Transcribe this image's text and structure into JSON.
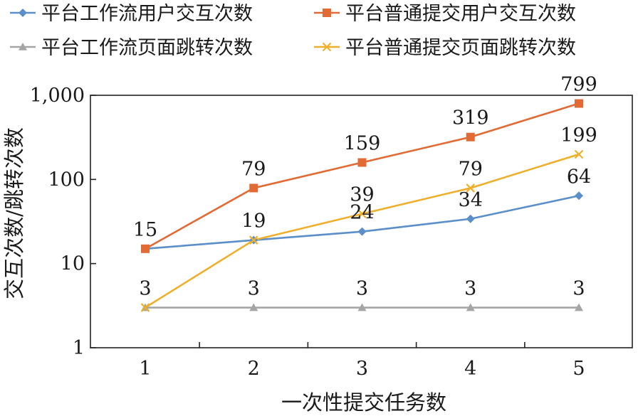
{
  "chart_data": {
    "type": "line",
    "x": [
      1,
      2,
      3,
      4,
      5
    ],
    "yscale": "log",
    "ylim": [
      1,
      1000
    ],
    "yticks": [
      1,
      10,
      100,
      1000
    ],
    "ytick_labels": [
      "1",
      "10",
      "100",
      "1,000"
    ],
    "xtick_labels": [
      "1",
      "2",
      "3",
      "4",
      "5"
    ],
    "xlabel": "一次性提交任务数",
    "ylabel": "交互次数/跳转次数",
    "legend_position": "top",
    "series": [
      {
        "name": "平台工作流用户交互次数",
        "values": [
          15,
          19,
          24,
          34,
          64
        ],
        "color": "#5b8fc9",
        "marker": "diamond",
        "labels": [
          "",
          "",
          "24",
          "34",
          "64"
        ]
      },
      {
        "name": "平台普通提交用户交互次数",
        "values": [
          15,
          79,
          159,
          319,
          799
        ],
        "color": "#e26a34",
        "marker": "square",
        "labels": [
          "15",
          "79",
          "159",
          "319",
          "799"
        ]
      },
      {
        "name": "平台工作流页面跳转次数",
        "values": [
          3,
          3,
          3,
          3,
          3
        ],
        "color": "#a5a5a5",
        "marker": "triangle",
        "labels": [
          "3",
          "3",
          "3",
          "3",
          "3"
        ]
      },
      {
        "name": "平台普通提交页面跳转次数",
        "values": [
          3,
          19,
          39,
          79,
          199
        ],
        "color": "#eeb02c",
        "marker": "x",
        "labels": [
          "",
          "19",
          "39",
          "79",
          "199"
        ]
      }
    ]
  }
}
